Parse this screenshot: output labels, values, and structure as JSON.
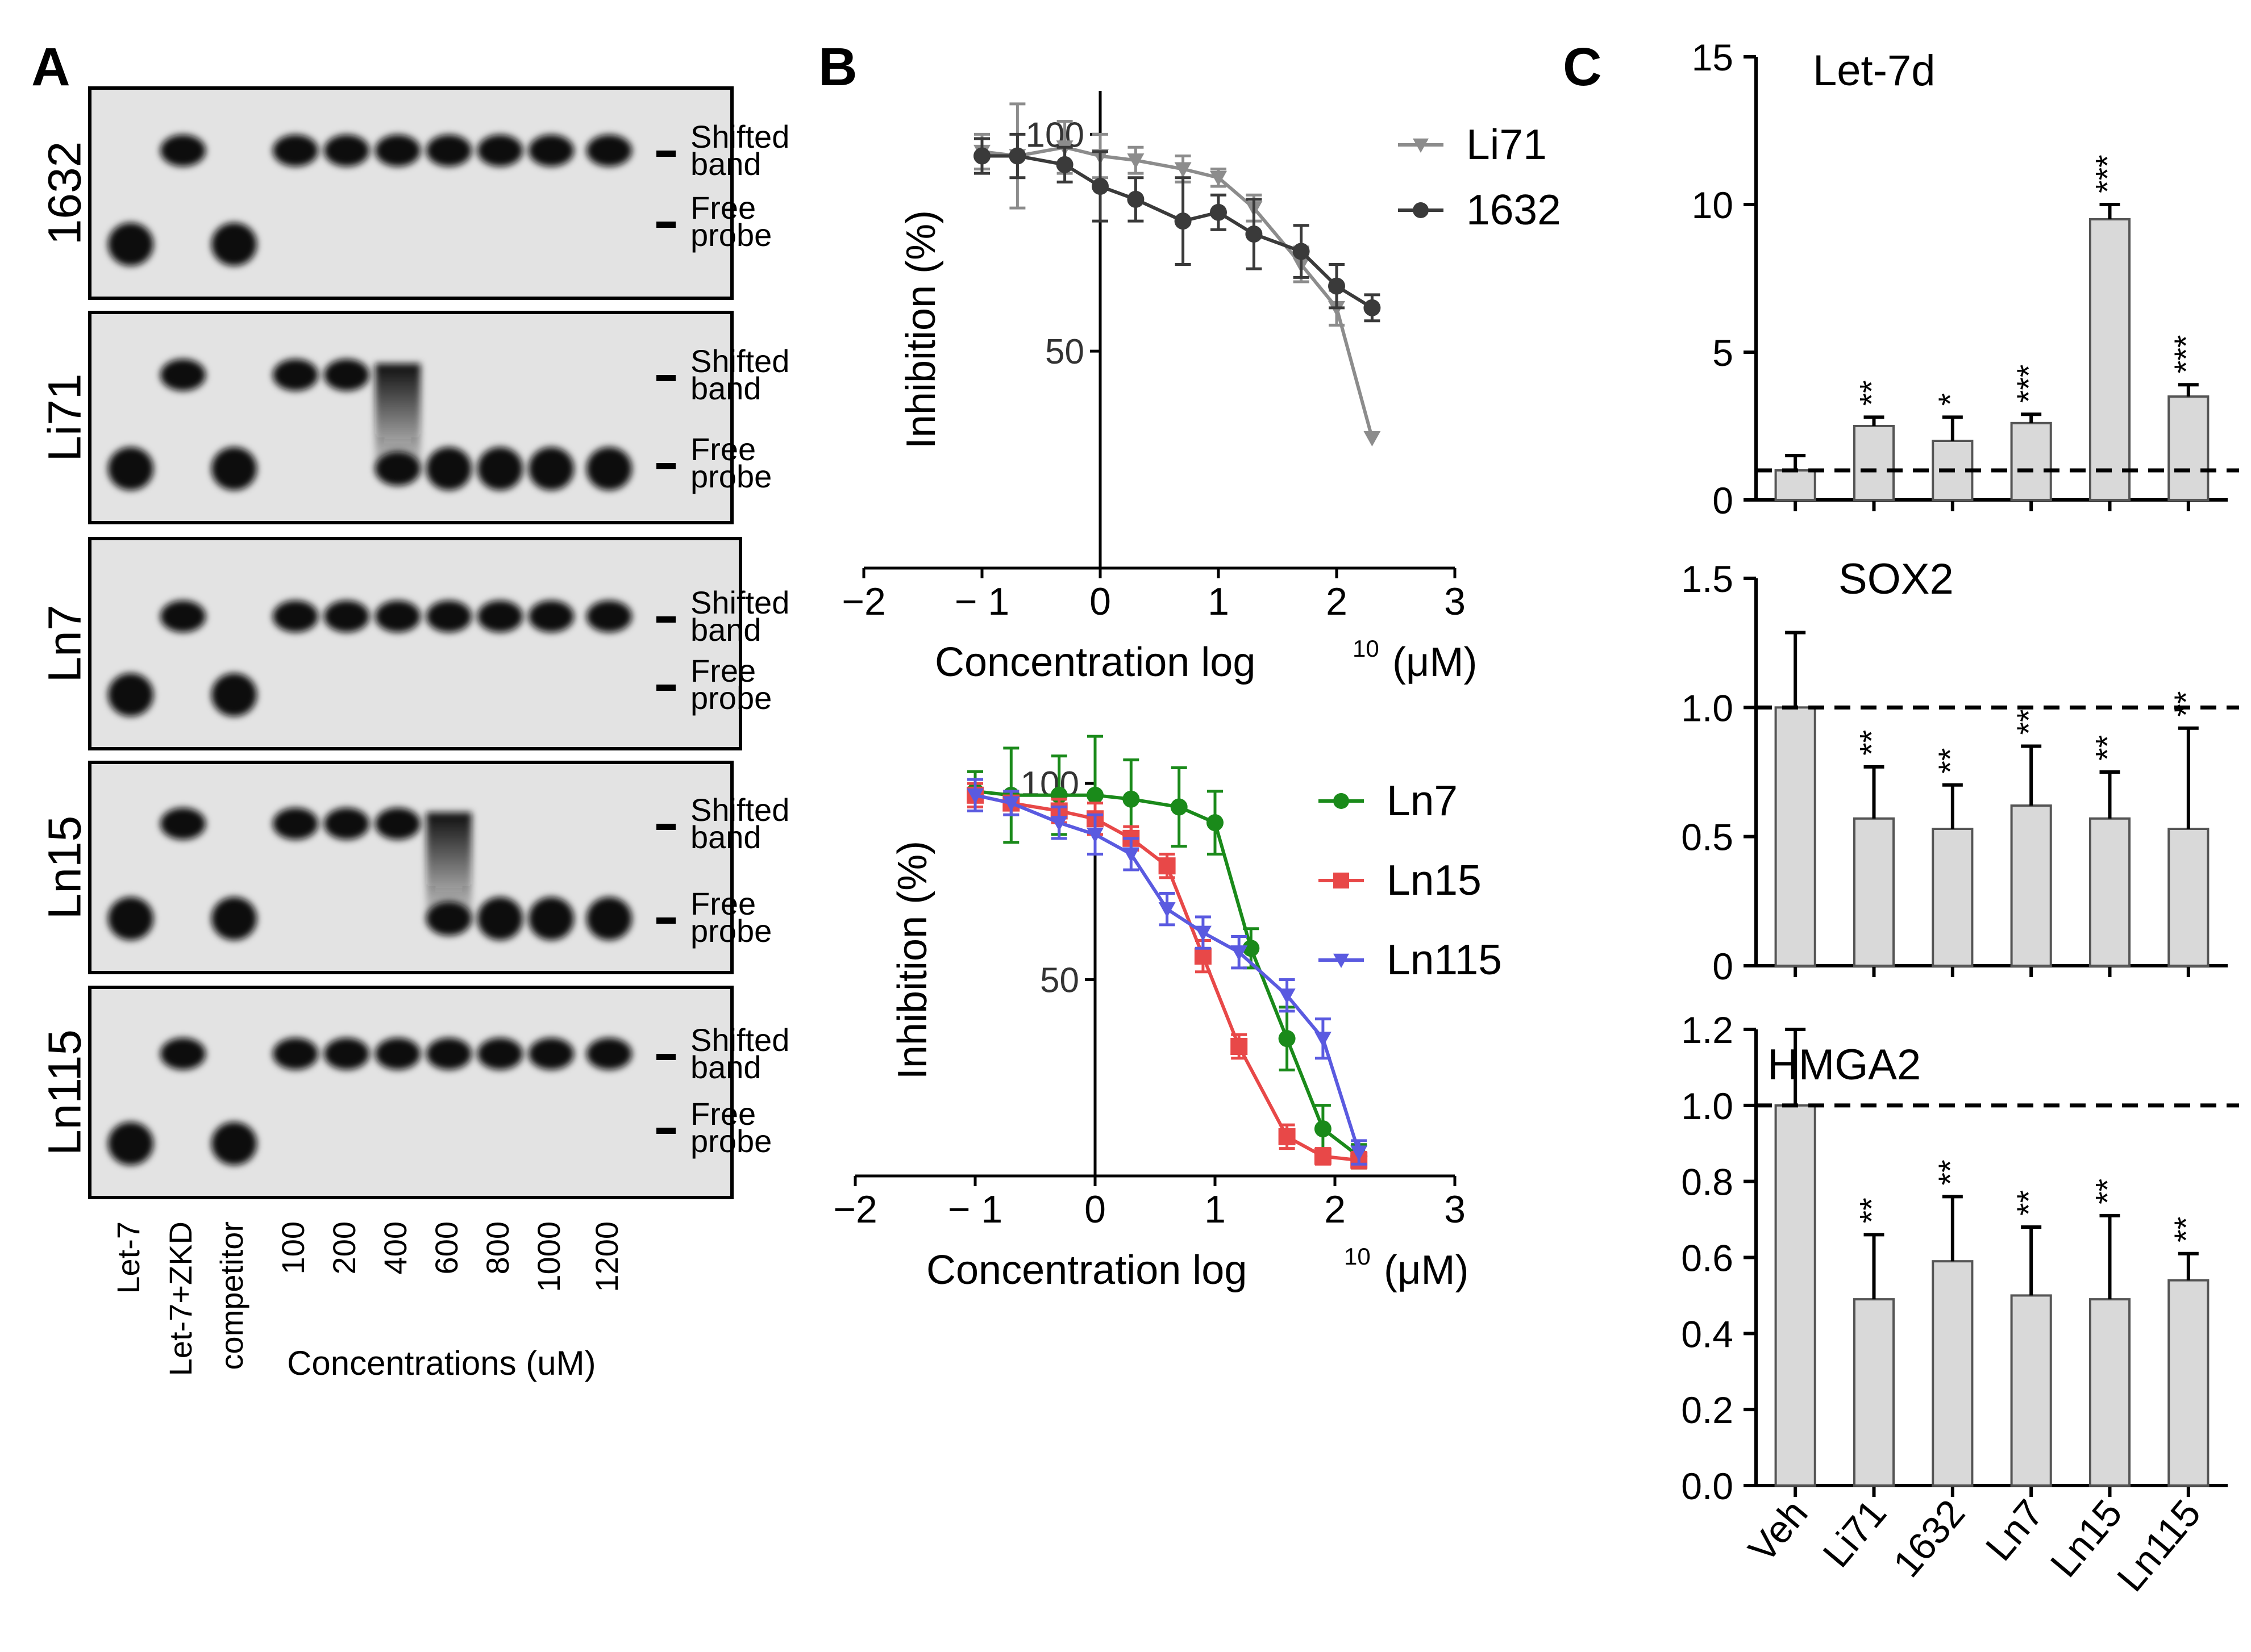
{
  "figure": {
    "panel_labels": [
      "A",
      "B",
      "C"
    ],
    "lane_labels": [
      "Let-7",
      "Let-7+ZKD",
      "competitor",
      "100",
      "200",
      "400",
      "600",
      "800",
      "1000",
      "1200"
    ],
    "concentrations_label": "Concentrations (uM)",
    "shifted_label_1": "Shifted",
    "shifted_label_2": "band",
    "free_label_1": "Free",
    "free_label_2": "probe",
    "exp_sup": "10",
    "star_counts": {
      "letd": [
        "",
        "**",
        "*",
        "***",
        "***",
        "***"
      ],
      "sox2": [
        "",
        "**",
        "**",
        "**",
        "**",
        "**"
      ],
      "hmga2": [
        "",
        "**",
        "**",
        "**",
        "**",
        "**"
      ]
    }
  },
  "chart_data": [
    {
      "type": "gel",
      "panel": "A",
      "blots": [
        {
          "label": "1632",
          "bands": [
            "free",
            "shifted",
            "free",
            "shifted",
            "shifted",
            "shifted",
            "shifted",
            "shifted",
            "shifted",
            "shifted"
          ]
        },
        {
          "label": "Li71",
          "bands": [
            "free",
            "shifted",
            "free",
            "shifted",
            "shifted",
            "mixed",
            "free",
            "free",
            "free",
            "free"
          ]
        },
        {
          "label": "Ln7",
          "bands": [
            "free",
            "shifted",
            "free",
            "shifted",
            "shifted",
            "shifted",
            "shifted",
            "shifted",
            "shifted",
            "shifted"
          ]
        },
        {
          "label": "Ln15",
          "bands": [
            "free",
            "shifted",
            "free",
            "shifted",
            "shifted",
            "shifted",
            "mixed",
            "free",
            "free",
            "free"
          ]
        },
        {
          "label": "Ln115",
          "bands": [
            "free",
            "shifted",
            "free",
            "shifted",
            "shifted",
            "shifted",
            "shifted",
            "shifted",
            "shifted",
            "shifted"
          ]
        }
      ]
    },
    {
      "type": "line",
      "panel": "B",
      "title": "",
      "xlabel": "Concentration log",
      "xlabel_suffix": "(μM)",
      "ylabel": "Inhibition (%)",
      "xlim": [
        -2,
        3
      ],
      "ylim": [
        0,
        110
      ],
      "xticks": [
        "−2",
        "− 1",
        "0",
        "1",
        "2",
        "3"
      ],
      "yticks": [
        "50",
        "100"
      ],
      "series": [
        {
          "name": "Li71",
          "color": "#8c8c8c",
          "marker": "triangle",
          "x": [
            -1,
            -0.7,
            -0.3,
            0,
            0.3,
            0.7,
            1.0,
            1.3,
            1.7,
            2.0,
            2.3
          ],
          "y": [
            96,
            95,
            97,
            95,
            94,
            92,
            90,
            83,
            70,
            60,
            30
          ],
          "err": [
            4,
            12,
            6,
            5,
            3,
            3,
            2,
            3,
            4,
            4,
            0
          ]
        },
        {
          "name": "1632",
          "color": "#3a3a3a",
          "marker": "circle",
          "x": [
            -1,
            -0.7,
            -0.3,
            0,
            0.3,
            0.7,
            1.0,
            1.3,
            1.7,
            2.0,
            2.3
          ],
          "y": [
            95,
            95,
            93,
            88,
            85,
            80,
            82,
            77,
            73,
            65,
            60
          ],
          "err": [
            4,
            5,
            4,
            8,
            5,
            10,
            4,
            8,
            6,
            5,
            3
          ]
        }
      ]
    },
    {
      "type": "line",
      "panel": "B",
      "title": "",
      "xlabel": "Concentration log",
      "xlabel_suffix": "(μM)",
      "ylabel": "Inhibition (%)",
      "xlim": [
        -2,
        3
      ],
      "ylim": [
        0,
        110
      ],
      "xticks": [
        "−2",
        "− 1",
        "0",
        "1",
        "2",
        "3"
      ],
      "yticks": [
        "50",
        "100"
      ],
      "series": [
        {
          "name": "Ln7",
          "color": "#1a8a1a",
          "marker": "circle",
          "x": [
            -1,
            -0.7,
            -0.3,
            0,
            0.3,
            0.7,
            1.0,
            1.3,
            1.6,
            1.9,
            2.2
          ],
          "y": [
            98,
            97,
            97,
            97,
            96,
            94,
            90,
            58,
            35,
            12,
            5
          ],
          "err": [
            5,
            12,
            10,
            15,
            10,
            10,
            8,
            5,
            8,
            6,
            3
          ]
        },
        {
          "name": "Ln15",
          "color": "#e84848",
          "marker": "square",
          "x": [
            -1,
            -0.7,
            -0.3,
            0,
            0.3,
            0.6,
            0.9,
            1.2,
            1.6,
            1.9,
            2.2
          ],
          "y": [
            97,
            95,
            93,
            91,
            86,
            79,
            56,
            33,
            10,
            5,
            4
          ],
          "err": [
            3,
            3,
            3,
            4,
            3,
            3,
            4,
            3,
            3,
            2,
            2
          ]
        },
        {
          "name": "Ln115",
          "color": "#5a5ae0",
          "marker": "triangle-down",
          "x": [
            -1,
            -0.7,
            -0.3,
            0,
            0.3,
            0.6,
            0.9,
            1.2,
            1.6,
            1.9,
            2.2
          ],
          "y": [
            97,
            95,
            90,
            87,
            82,
            68,
            62,
            57,
            46,
            35,
            6
          ],
          "err": [
            4,
            3,
            4,
            5,
            4,
            4,
            4,
            4,
            4,
            5,
            3
          ]
        }
      ]
    },
    {
      "type": "bar",
      "panel": "C",
      "title": "Let-7d",
      "categories": [
        "Veh",
        "Li71",
        "1632",
        "Ln7",
        "Ln15",
        "Ln115"
      ],
      "values": [
        1.0,
        2.5,
        2.0,
        2.6,
        9.5,
        3.5
      ],
      "errors": [
        0.5,
        0.3,
        0.8,
        0.3,
        0.5,
        0.4
      ],
      "ylim": [
        0,
        15
      ],
      "yticks": [
        "0",
        "5",
        "10",
        "15"
      ],
      "reference_line": 1.0
    },
    {
      "type": "bar",
      "panel": "C",
      "title": "SOX2",
      "categories": [
        "Veh",
        "Li71",
        "1632",
        "Ln7",
        "Ln15",
        "Ln115"
      ],
      "values": [
        1.0,
        0.57,
        0.53,
        0.62,
        0.57,
        0.53
      ],
      "errors": [
        0.29,
        0.2,
        0.17,
        0.23,
        0.18,
        0.39
      ],
      "ylim": [
        0,
        1.5
      ],
      "yticks": [
        "0",
        "0.5",
        "1.0",
        "1.5"
      ],
      "reference_line": 1.0
    },
    {
      "type": "bar",
      "panel": "C",
      "title": "HMGA2",
      "categories": [
        "Veh",
        "Li71",
        "1632",
        "Ln7",
        "Ln15",
        "Ln115"
      ],
      "values": [
        1.0,
        0.49,
        0.59,
        0.5,
        0.49,
        0.54
      ],
      "errors": [
        0.2,
        0.17,
        0.17,
        0.18,
        0.22,
        0.07
      ],
      "ylim": [
        0,
        1.2
      ],
      "yticks": [
        "0.0",
        "0.2",
        "0.4",
        "0.6",
        "0.8",
        "1.0",
        "1.2"
      ],
      "reference_line": 1.0
    }
  ]
}
